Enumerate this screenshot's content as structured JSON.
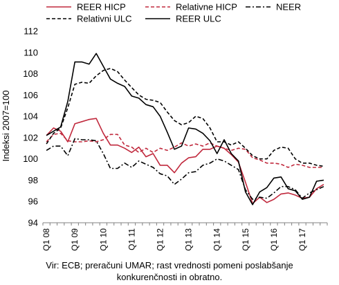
{
  "chart_data": {
    "type": "line",
    "ylabel": "Indeksi 2007=100",
    "ylim": [
      94,
      112
    ],
    "yticks": [
      94,
      96,
      98,
      100,
      102,
      104,
      106,
      108,
      110,
      112
    ],
    "x": [
      "Q1 08",
      "Q2 08",
      "Q3 08",
      "Q4 08",
      "Q1 09",
      "Q2 09",
      "Q3 09",
      "Q4 09",
      "Q1 10",
      "Q2 10",
      "Q3 10",
      "Q4 10",
      "Q1 11",
      "Q2 11",
      "Q3 11",
      "Q4 11",
      "Q1 12",
      "Q2 12",
      "Q3 12",
      "Q4 12",
      "Q1 13",
      "Q2 13",
      "Q3 13",
      "Q4 13",
      "Q1 14",
      "Q2 14",
      "Q3 14",
      "Q4 14",
      "Q1 15",
      "Q2 15",
      "Q3 15",
      "Q4 15",
      "Q1 16",
      "Q2 16",
      "Q3 16",
      "Q4 16",
      "Q1 17",
      "Q2 17",
      "Q3 17",
      "Q4 17"
    ],
    "xtick_labels": [
      "Q1 08",
      "Q1 09",
      "Q1 10",
      "Q1 11",
      "Q1 12",
      "Q1 13",
      "Q1 14",
      "Q1 15",
      "Q1 16",
      "Q1 17"
    ],
    "grid": "none",
    "legend_position": "top",
    "series": [
      {
        "name": "REER HICP",
        "style": "solid",
        "color": "#c0283c",
        "values": [
          102.2,
          102.9,
          102.6,
          101.6,
          103.3,
          103.5,
          103.7,
          103.8,
          102.4,
          101.3,
          101.3,
          101.0,
          100.6,
          101.1,
          100.2,
          100.5,
          99.4,
          99.4,
          98.7,
          99.6,
          100.1,
          100.2,
          100.9,
          100.9,
          101.2,
          101.0,
          100.4,
          99.7,
          97.8,
          95.8,
          96.4,
          95.9,
          96.2,
          96.7,
          96.8,
          96.6,
          96.3,
          96.4,
          97.2,
          97.6
        ]
      },
      {
        "name": "Relativne HICP",
        "style": "dashed",
        "color": "#c0283c",
        "values": [
          101.6,
          102.3,
          102.4,
          101.7,
          101.6,
          101.6,
          101.7,
          101.6,
          101.8,
          102.3,
          102.3,
          101.3,
          101.1,
          100.6,
          101.0,
          100.6,
          101.0,
          100.8,
          101.1,
          101.5,
          101.2,
          101.4,
          101.2,
          101.5,
          101.2,
          101.0,
          100.8,
          101.0,
          100.9,
          100.1,
          99.9,
          99.6,
          99.6,
          99.5,
          99.2,
          99.5,
          99.4,
          99.2,
          99.2,
          99.2
        ]
      },
      {
        "name": "NEER",
        "style": "dashdot",
        "color": "#000000",
        "values": [
          100.8,
          101.2,
          101.2,
          100.3,
          101.9,
          101.8,
          101.8,
          101.7,
          100.5,
          99.1,
          99.1,
          99.6,
          99.2,
          99.8,
          99.5,
          99.2,
          98.6,
          98.4,
          97.6,
          98.1,
          98.7,
          98.8,
          99.4,
          99.6,
          100.0,
          99.8,
          99.4,
          99.0,
          97.1,
          96.2,
          96.4,
          96.3,
          96.8,
          97.4,
          97.4,
          97.1,
          96.3,
          96.8,
          97.1,
          97.4
        ]
      },
      {
        "name": "Relativni ULC",
        "style": "dashed",
        "color": "#000000",
        "values": [
          101.4,
          102.4,
          102.9,
          104.8,
          107.0,
          107.2,
          107.1,
          107.8,
          108.3,
          108.5,
          108.2,
          107.4,
          106.7,
          106.0,
          105.6,
          105.5,
          105.3,
          104.4,
          103.6,
          103.2,
          103.4,
          104.0,
          103.8,
          102.9,
          101.6,
          101.6,
          101.3,
          101.6,
          101.0,
          100.3,
          100.0,
          100.0,
          100.8,
          101.1,
          101.0,
          100.0,
          99.6,
          99.6,
          99.4,
          99.3
        ]
      },
      {
        "name": "REER ULC",
        "style": "solid",
        "color": "#000000",
        "values": [
          102.2,
          102.6,
          103.0,
          105.4,
          109.1,
          109.1,
          108.9,
          109.9,
          108.7,
          107.5,
          107.1,
          106.8,
          105.9,
          105.7,
          105.1,
          104.9,
          104.0,
          102.5,
          100.9,
          101.2,
          102.9,
          102.8,
          102.4,
          101.7,
          100.5,
          101.8,
          100.5,
          99.8,
          96.9,
          95.7,
          96.9,
          97.3,
          98.2,
          98.3,
          97.2,
          97.0,
          96.2,
          96.4,
          97.9,
          98.0
        ]
      }
    ],
    "source_note": [
      "Vir: ECB; preračuni UMAR; rast vrednosti pomeni poslabšanje",
      "konkurenčnosti in obratno."
    ]
  }
}
